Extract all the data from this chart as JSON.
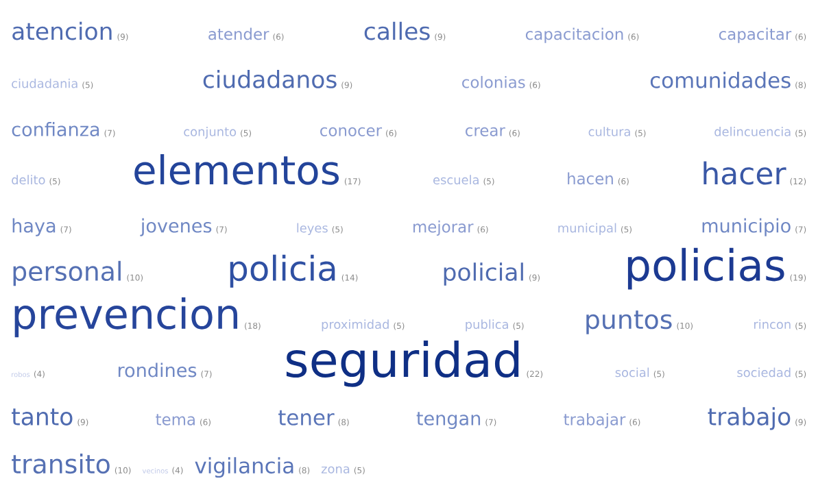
{
  "chart_data": {
    "type": "other",
    "categories": [
      "atencion",
      "atender",
      "calles",
      "capacitacion",
      "capacitar",
      "ciudadania",
      "ciudadanos",
      "colonias",
      "comunidades",
      "confianza",
      "conjunto",
      "conocer",
      "crear",
      "cultura",
      "delincuencia",
      "delito",
      "elementos",
      "escuela",
      "hacen",
      "hacer",
      "haya",
      "jovenes",
      "leyes",
      "mejorar",
      "municipal",
      "municipio",
      "personal",
      "policia",
      "policial",
      "policias",
      "prevencion",
      "proximidad",
      "publica",
      "puntos",
      "rincon",
      "robos",
      "rondines",
      "seguridad",
      "social",
      "sociedad",
      "tanto",
      "tema",
      "tener",
      "tengan",
      "trabajar",
      "trabajo",
      "transito",
      "vecinos",
      "vigilancia",
      "zona"
    ],
    "value_labels": [
      "(9)",
      "(6)",
      "(9)",
      "(6)",
      "(6)",
      "(5)",
      "(9)",
      "(6)",
      "(8)",
      "(7)",
      "(5)",
      "(6)",
      "(6)",
      "(5)",
      "(5)",
      "(5)",
      "(17)",
      "(5)",
      "(6)",
      "(12)",
      "(7)",
      "(7)",
      "(5)",
      "(6)",
      "(5)",
      "(7)",
      "(10)",
      "(14)",
      "(9)",
      "(19)",
      "(18)",
      "(5)",
      "(5)",
      "(10)",
      "(5)",
      "(4)",
      "(7)",
      "(22)",
      "(5)",
      "(5)",
      "(9)",
      "(6)",
      "(8)",
      "(7)",
      "(6)",
      "(9)",
      "(10)",
      "(4)",
      "(8)",
      "(5)"
    ],
    "values": [
      9,
      6,
      9,
      6,
      6,
      5,
      9,
      6,
      8,
      7,
      5,
      6,
      6,
      5,
      5,
      5,
      17,
      5,
      6,
      12,
      7,
      7,
      5,
      6,
      5,
      7,
      10,
      14,
      9,
      19,
      18,
      5,
      5,
      10,
      5,
      4,
      7,
      22,
      5,
      5,
      9,
      6,
      8,
      7,
      6,
      9,
      10,
      4,
      8,
      5
    ],
    "colors": [
      "#4f6bb0",
      "#8a9bd0",
      "#4f6bb0",
      "#8a9bd0",
      "#8a9bd0",
      "#a9b7e0",
      "#4f6bb0",
      "#8a9bd0",
      "#5a75b8",
      "#7088c4",
      "#a9b7e0",
      "#8a9bd0",
      "#8a9bd0",
      "#a9b7e0",
      "#a9b7e0",
      "#a9b7e0",
      "#23449a",
      "#a9b7e0",
      "#8a9bd0",
      "#3a58a6",
      "#7088c4",
      "#7088c4",
      "#a9b7e0",
      "#8a9bd0",
      "#a9b7e0",
      "#7088c4",
      "#5570b3",
      "#2f50a3",
      "#4f6bb0",
      "#1c3a92",
      "#26459b",
      "#a9b7e0",
      "#a9b7e0",
      "#5570b3",
      "#a9b7e0",
      "#c0c9e8",
      "#7088c4",
      "#0f2f85",
      "#a9b7e0",
      "#a9b7e0",
      "#4f6bb0",
      "#8a9bd0",
      "#5a75b8",
      "#7088c4",
      "#8a9bd0",
      "#4f6bb0",
      "#5570b3",
      "#c0c9e8",
      "#5a75b8",
      "#a9b7e0"
    ]
  }
}
